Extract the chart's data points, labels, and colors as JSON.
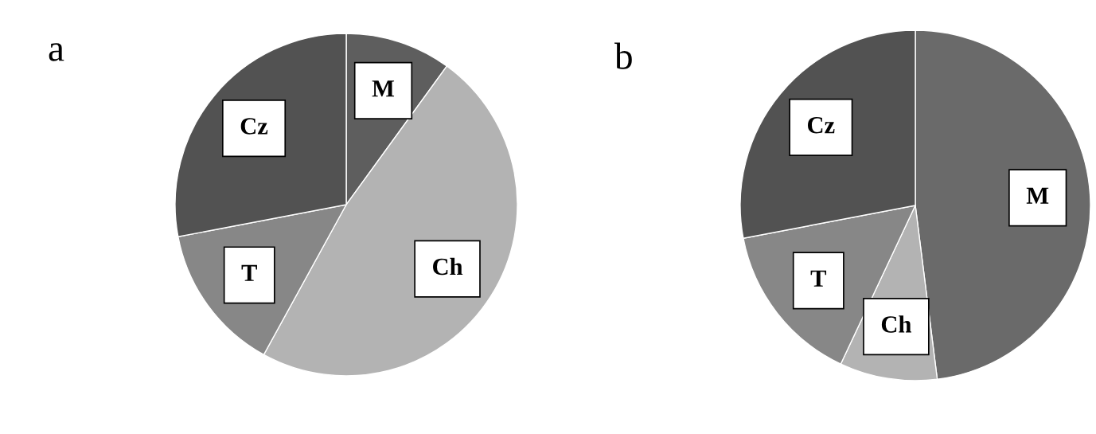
{
  "chart_data": [
    {
      "type": "pie",
      "title": "a",
      "categories": [
        "M",
        "Ch",
        "T",
        "Cz"
      ],
      "values": [
        10,
        48,
        14,
        28
      ],
      "colors": [
        "#5e5e5e",
        "#b3b3b3",
        "#878787",
        "#525252"
      ]
    },
    {
      "type": "pie",
      "title": "b",
      "categories": [
        "M",
        "Ch",
        "T",
        "Cz"
      ],
      "values": [
        48,
        9,
        15,
        28
      ],
      "colors": [
        "#6a6a6a",
        "#b3b3b3",
        "#878787",
        "#525252"
      ]
    }
  ]
}
